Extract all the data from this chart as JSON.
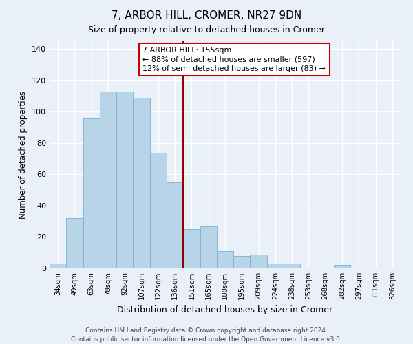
{
  "title": "7, ARBOR HILL, CROMER, NR27 9DN",
  "subtitle": "Size of property relative to detached houses in Cromer",
  "xlabel": "Distribution of detached houses by size in Cromer",
  "ylabel": "Number of detached properties",
  "categories": [
    "34sqm",
    "49sqm",
    "63sqm",
    "78sqm",
    "92sqm",
    "107sqm",
    "122sqm",
    "136sqm",
    "151sqm",
    "165sqm",
    "180sqm",
    "195sqm",
    "209sqm",
    "224sqm",
    "238sqm",
    "253sqm",
    "268sqm",
    "282sqm",
    "297sqm",
    "311sqm",
    "326sqm"
  ],
  "values": [
    3,
    32,
    96,
    113,
    113,
    109,
    74,
    55,
    25,
    27,
    11,
    8,
    9,
    3,
    3,
    0,
    0,
    2,
    0,
    0,
    0
  ],
  "bar_color": "#b8d4e8",
  "bar_edge_color": "#7bafd4",
  "vline_color": "#990000",
  "vline_index": 8,
  "annotation_box_text": "7 ARBOR HILL: 155sqm\n← 88% of detached houses are smaller (597)\n12% of semi-detached houses are larger (83) →",
  "annotation_box_facecolor": "white",
  "annotation_box_edgecolor": "#cc0000",
  "ylim": [
    0,
    145
  ],
  "yticks": [
    0,
    20,
    40,
    60,
    80,
    100,
    120,
    140
  ],
  "background_color": "#eaf0f8",
  "grid_color": "white",
  "footer_line1": "Contains HM Land Registry data © Crown copyright and database right 2024.",
  "footer_line2": "Contains public sector information licensed under the Open Government Licence v3.0."
}
